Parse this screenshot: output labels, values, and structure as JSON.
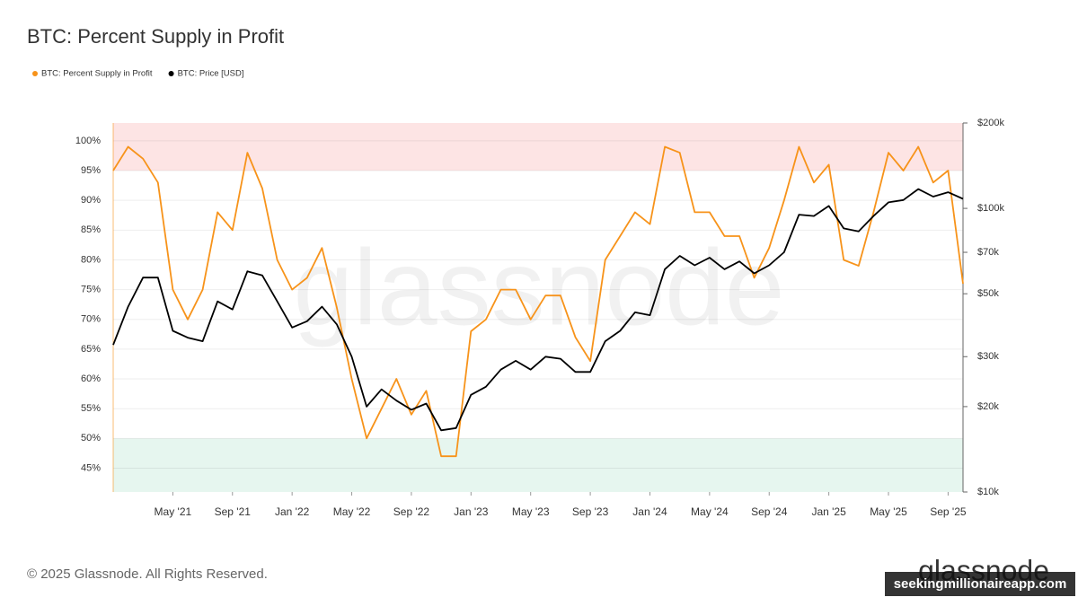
{
  "chart_data": {
    "type": "line",
    "title": "BTC: Percent Supply in Profit",
    "watermark": "glassnode",
    "x": [
      "2021-01",
      "2021-02",
      "2021-03",
      "2021-04",
      "2021-05",
      "2021-06",
      "2021-07",
      "2021-08",
      "2021-09",
      "2021-10",
      "2021-11",
      "2021-12",
      "2022-01",
      "2022-02",
      "2022-03",
      "2022-04",
      "2022-05",
      "2022-06",
      "2022-07",
      "2022-08",
      "2022-09",
      "2022-10",
      "2022-11",
      "2022-12",
      "2023-01",
      "2023-02",
      "2023-03",
      "2023-04",
      "2023-05",
      "2023-06",
      "2023-07",
      "2023-08",
      "2023-09",
      "2023-10",
      "2023-11",
      "2023-12",
      "2024-01",
      "2024-02",
      "2024-03",
      "2024-04",
      "2024-05",
      "2024-06",
      "2024-07",
      "2024-08",
      "2024-09",
      "2024-10",
      "2024-11",
      "2024-12",
      "2025-01",
      "2025-02",
      "2025-03",
      "2025-04",
      "2025-05",
      "2025-06",
      "2025-07",
      "2025-08",
      "2025-09",
      "2025-10"
    ],
    "xlim": [
      "2021-01",
      "2025-10"
    ],
    "xticks": [
      {
        "value": "2021-05",
        "label": "May '21"
      },
      {
        "value": "2021-09",
        "label": "Sep '21"
      },
      {
        "value": "2022-01",
        "label": "Jan '22"
      },
      {
        "value": "2022-05",
        "label": "May '22"
      },
      {
        "value": "2022-09",
        "label": "Sep '22"
      },
      {
        "value": "2023-01",
        "label": "Jan '23"
      },
      {
        "value": "2023-05",
        "label": "May '23"
      },
      {
        "value": "2023-09",
        "label": "Sep '23"
      },
      {
        "value": "2024-01",
        "label": "Jan '24"
      },
      {
        "value": "2024-05",
        "label": "May '24"
      },
      {
        "value": "2024-09",
        "label": "Sep '24"
      },
      {
        "value": "2025-01",
        "label": "Jan '25"
      },
      {
        "value": "2025-05",
        "label": "May '25"
      },
      {
        "value": "2025-09",
        "label": "Sep '25"
      }
    ],
    "ylim": [
      41,
      103
    ],
    "yticks": [
      {
        "value": 45,
        "label": "45%"
      },
      {
        "value": 50,
        "label": "50%"
      },
      {
        "value": 55,
        "label": "55%"
      },
      {
        "value": 60,
        "label": "60%"
      },
      {
        "value": 65,
        "label": "65%"
      },
      {
        "value": 70,
        "label": "70%"
      },
      {
        "value": 75,
        "label": "75%"
      },
      {
        "value": 80,
        "label": "80%"
      },
      {
        "value": 85,
        "label": "85%"
      },
      {
        "value": 90,
        "label": "90%"
      },
      {
        "value": 95,
        "label": "95%"
      },
      {
        "value": 100,
        "label": "100%"
      }
    ],
    "y2lim": [
      10000,
      200000
    ],
    "y2log": true,
    "y2ticks": [
      {
        "value": 10000,
        "label": "$10k"
      },
      {
        "value": 20000,
        "label": "$20k"
      },
      {
        "value": 30000,
        "label": "$30k"
      },
      {
        "value": 50000,
        "label": "$50k"
      },
      {
        "value": 70000,
        "label": "$70k"
      },
      {
        "value": 100000,
        "label": "$100k"
      },
      {
        "value": 200000,
        "label": "$200k"
      }
    ],
    "grid": true,
    "bands": [
      {
        "from": 95,
        "to": 103,
        "color": "#fde4e4"
      },
      {
        "from": 41,
        "to": 50,
        "color": "#e6f6ef"
      }
    ],
    "series": [
      {
        "name": "BTC: Percent Supply in Profit",
        "color": "#f7931a",
        "values": [
          95,
          99,
          97,
          93,
          75,
          70,
          75,
          88,
          85,
          98,
          92,
          80,
          75,
          77,
          82,
          72,
          60,
          50,
          55,
          60,
          54,
          58,
          47,
          47,
          68,
          70,
          75,
          75,
          70,
          74,
          74,
          67,
          63,
          80,
          84,
          88,
          86,
          99,
          98,
          88,
          88,
          84,
          84,
          77,
          82,
          90,
          99,
          93,
          96,
          80,
          79,
          88,
          98,
          95,
          99,
          93,
          95,
          76
        ]
      },
      {
        "name": "BTC: Price [USD]",
        "color": "#000000",
        "axis": "y2",
        "values": [
          33000,
          45000,
          57000,
          57000,
          37000,
          35000,
          34000,
          47000,
          44000,
          60000,
          58000,
          47000,
          38000,
          40000,
          45000,
          39000,
          30000,
          20000,
          23000,
          21000,
          19500,
          20500,
          16500,
          16800,
          22000,
          23500,
          27000,
          29000,
          27000,
          30000,
          29500,
          26500,
          26500,
          34000,
          37000,
          43000,
          42000,
          61000,
          68000,
          63000,
          67000,
          61000,
          65000,
          59000,
          63000,
          70000,
          95000,
          94000,
          102000,
          85000,
          83000,
          94000,
          105000,
          107000,
          117000,
          110000,
          114000,
          108000
        ]
      }
    ]
  },
  "footer": "© 2025 Glassnode. All Rights Reserved.",
  "logo": "glassnode",
  "credit": "seekingmillionaireapp.com"
}
